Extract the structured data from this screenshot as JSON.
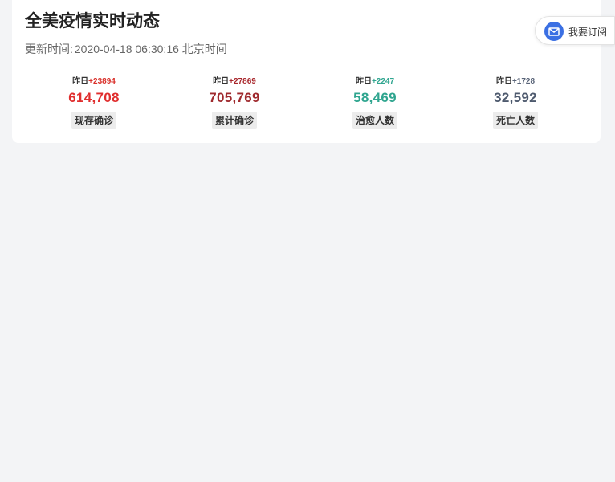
{
  "header": {
    "title": "全美疫情实时动态",
    "update_label": "更新时间:",
    "update_time": "2020-04-18 06:30:16 北京时间",
    "subscribe_label": "我要订阅"
  },
  "stats": [
    {
      "delta_prefix": "昨日",
      "delta": "+23894",
      "value": "614,708",
      "label": "现存确诊",
      "delta_color": "#d9302a",
      "value_color": "#e02e2e"
    },
    {
      "delta_prefix": "昨日",
      "delta": "+27869",
      "value": "705,769",
      "label": "累计确诊",
      "delta_color": "#a8262b",
      "value_color": "#9f2a2e"
    },
    {
      "delta_prefix": "昨日",
      "delta": "+2247",
      "value": "58,469",
      "label": "治愈人数",
      "delta_color": "#2fa58f",
      "value_color": "#2fa58f"
    },
    {
      "delta_prefix": "昨日",
      "delta": "+1728",
      "value": "32,592",
      "label": "死亡人数",
      "delta_color": "#5a6579",
      "value_color": "#4e5a6e"
    }
  ]
}
